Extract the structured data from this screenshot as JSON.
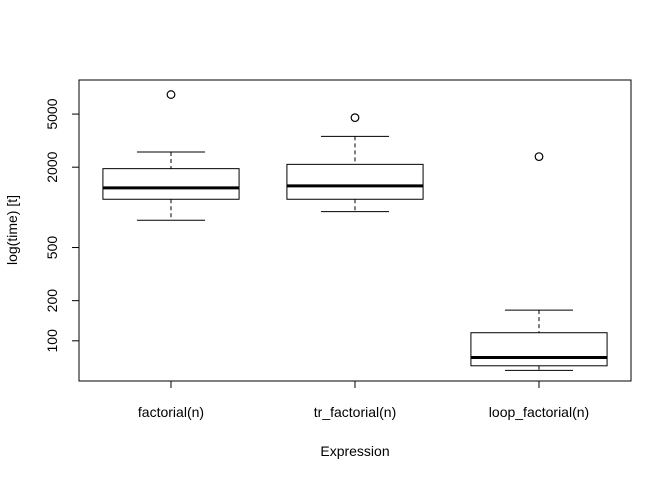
{
  "chart_data": {
    "type": "boxplot",
    "title": "",
    "xlabel": "Expression",
    "ylabel": "log(time) [t]",
    "y_scale": "log",
    "ylim": [
      50,
      9000
    ],
    "y_ticks": [
      100,
      200,
      500,
      2000,
      5000
    ],
    "grid": false,
    "categories": [
      "factorial(n)",
      "tr_factorial(n)",
      "loop_factorial(n)"
    ],
    "boxes": [
      {
        "category": "factorial(n)",
        "whisker_low": 800,
        "q1": 1150,
        "median": 1400,
        "q3": 1950,
        "whisker_high": 2600,
        "outliers": [
          7000
        ]
      },
      {
        "category": "tr_factorial(n)",
        "whisker_low": 930,
        "q1": 1150,
        "median": 1450,
        "q3": 2100,
        "whisker_high": 3400,
        "outliers": [
          4700
        ]
      },
      {
        "category": "loop_factorial(n)",
        "whisker_low": 60,
        "q1": 65,
        "median": 75,
        "q3": 115,
        "whisker_high": 170,
        "outliers": [
          2400
        ]
      }
    ]
  }
}
